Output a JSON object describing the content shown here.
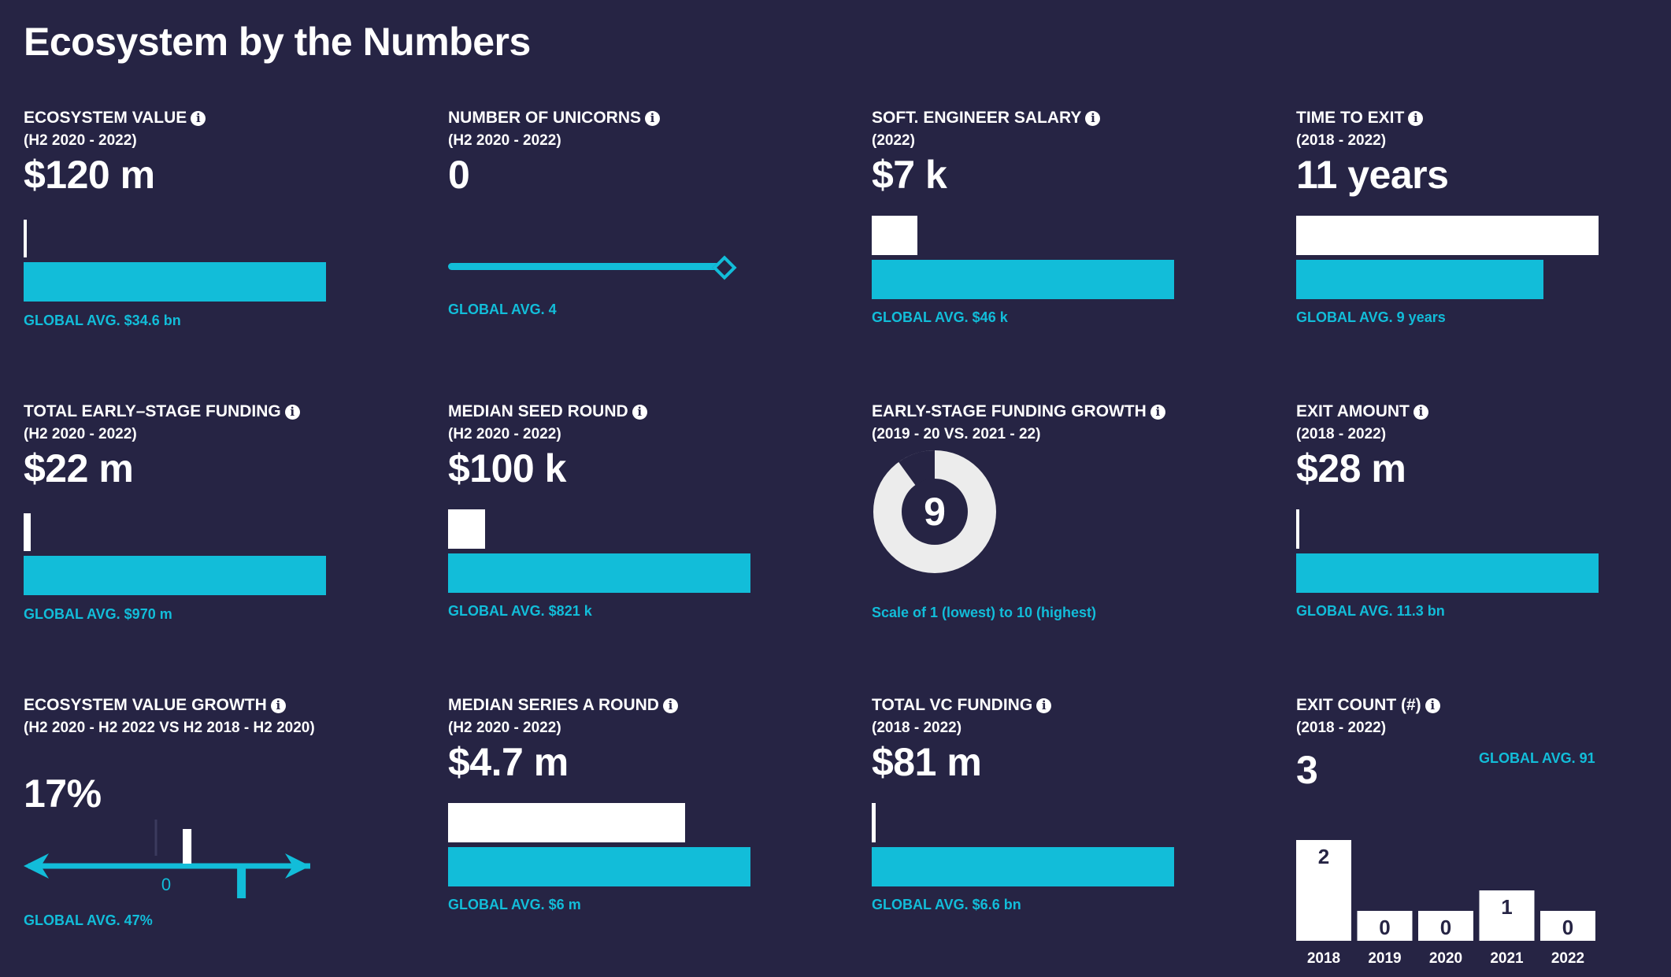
{
  "title": "Ecosystem by the Numbers",
  "info_icon_glyph": "i",
  "colors": {
    "background": "#262444",
    "local": "#ffffff",
    "global": "#12bdd9"
  },
  "metrics": {
    "ecosystem_value": {
      "title": "ECOSYSTEM VALUE",
      "period": "(H2 2020 - 2022)",
      "value": "$120 m",
      "global_label": "GLOBAL AVG. $34.6 bn",
      "local_number": 0.12,
      "global_number": 34.6,
      "unit": "bn"
    },
    "unicorns": {
      "title": "NUMBER OF UNICORNS",
      "period": "(H2 2020 - 2022)",
      "value": "0",
      "global_label": "GLOBAL AVG. 4",
      "local_number": 0,
      "global_number": 4
    },
    "salary": {
      "title": "SOFT. ENGINEER SALARY",
      "period": "(2022)",
      "value": "$7 k",
      "global_label": "GLOBAL AVG. $46 k",
      "local_number": 7,
      "global_number": 46,
      "unit": "k"
    },
    "time_to_exit": {
      "title": "TIME TO EXIT",
      "period": "(2018 - 2022)",
      "value": "11 years",
      "global_label": "GLOBAL AVG. 9 years",
      "local_number": 11,
      "global_number": 9,
      "unit": "years"
    },
    "early_funding": {
      "title": "TOTAL EARLY–STAGE FUNDING",
      "period": "(H2 2020 - 2022)",
      "value": "$22 m",
      "global_label": "GLOBAL AVG. $970 m",
      "local_number": 22,
      "global_number": 970,
      "unit": "m"
    },
    "seed_round": {
      "title": "MEDIAN SEED ROUND",
      "period": "(H2 2020 - 2022)",
      "value": "$100 k",
      "global_label": "GLOBAL AVG. $821 k",
      "local_number": 100,
      "global_number": 821,
      "unit": "k"
    },
    "funding_growth": {
      "title": "EARLY-STAGE FUNDING GROWTH",
      "period": "(2019 - 20 VS. 2021 - 22)",
      "value": "9",
      "score": 9,
      "scale_max": 10,
      "caption": "Scale of 1 (lowest) to 10 (highest)"
    },
    "exit_amount": {
      "title": "EXIT AMOUNT",
      "period": "(2018 - 2022)",
      "value": "$28 m",
      "global_label": "GLOBAL AVG. 11.3 bn",
      "local_number": 0.028,
      "global_number": 11.3,
      "unit": "bn"
    },
    "value_growth": {
      "title": "ECOSYSTEM VALUE GROWTH",
      "period": "(H2 2020 - H2 2022 VS H2 2018 - H2 2020)",
      "value": "17%",
      "global_label": "GLOBAL AVG. 47%",
      "local_number": 17,
      "global_number": 47,
      "zero_label": "0"
    },
    "series_a": {
      "title": "MEDIAN SERIES A ROUND",
      "period": "(H2 2020 - 2022)",
      "value": "$4.7 m",
      "global_label": "GLOBAL AVG. $6 m",
      "local_number": 4.7,
      "global_number": 6,
      "unit": "m"
    },
    "vc_funding": {
      "title": "TOTAL VC FUNDING",
      "period": "(2018 - 2022)",
      "value": "$81 m",
      "global_label": "GLOBAL AVG. $6.6 bn",
      "local_number": 0.081,
      "global_number": 6.6,
      "unit": "bn"
    },
    "exit_count": {
      "title": "EXIT COUNT (#)",
      "period": "(2018 - 2022)",
      "value": "3",
      "global_label": "GLOBAL AVG. 91"
    }
  },
  "chart_data": [
    {
      "type": "bar",
      "title": "ECOSYSTEM VALUE",
      "categories": [
        "Local",
        "Global avg."
      ],
      "values": [
        0.12,
        34.6
      ],
      "ylabel": "$ bn"
    },
    {
      "type": "bar",
      "title": "NUMBER OF UNICORNS",
      "categories": [
        "Local",
        "Global avg."
      ],
      "values": [
        0,
        4
      ]
    },
    {
      "type": "bar",
      "title": "SOFT. ENGINEER SALARY",
      "categories": [
        "Local",
        "Global avg."
      ],
      "values": [
        7,
        46
      ],
      "ylabel": "$ k"
    },
    {
      "type": "bar",
      "title": "TIME TO EXIT",
      "categories": [
        "Local",
        "Global avg."
      ],
      "values": [
        11,
        9
      ],
      "ylabel": "years"
    },
    {
      "type": "bar",
      "title": "TOTAL EARLY–STAGE FUNDING",
      "categories": [
        "Local",
        "Global avg."
      ],
      "values": [
        22,
        970
      ],
      "ylabel": "$ m"
    },
    {
      "type": "bar",
      "title": "MEDIAN SEED ROUND",
      "categories": [
        "Local",
        "Global avg."
      ],
      "values": [
        100,
        821
      ],
      "ylabel": "$ k"
    },
    {
      "type": "pie",
      "title": "EARLY-STAGE FUNDING GROWTH",
      "categories": [
        "Score",
        "Remaining"
      ],
      "values": [
        9,
        1
      ]
    },
    {
      "type": "bar",
      "title": "EXIT AMOUNT",
      "categories": [
        "Local",
        "Global avg."
      ],
      "values": [
        0.028,
        11.3
      ],
      "ylabel": "$ bn"
    },
    {
      "type": "bar",
      "title": "ECOSYSTEM VALUE GROWTH",
      "categories": [
        "Local",
        "Global avg."
      ],
      "values": [
        17,
        47
      ],
      "ylabel": "%"
    },
    {
      "type": "bar",
      "title": "MEDIAN SERIES A ROUND",
      "categories": [
        "Local",
        "Global avg."
      ],
      "values": [
        4.7,
        6
      ],
      "ylabel": "$ m"
    },
    {
      "type": "bar",
      "title": "TOTAL VC FUNDING",
      "categories": [
        "Local",
        "Global avg."
      ],
      "values": [
        0.081,
        6.6
      ],
      "ylabel": "$ bn"
    },
    {
      "type": "bar",
      "title": "EXIT COUNT (#)",
      "categories": [
        "2018",
        "2019",
        "2020",
        "2021",
        "2022"
      ],
      "values": [
        2,
        0,
        0,
        1,
        0
      ],
      "ylim": [
        0,
        2
      ]
    }
  ]
}
